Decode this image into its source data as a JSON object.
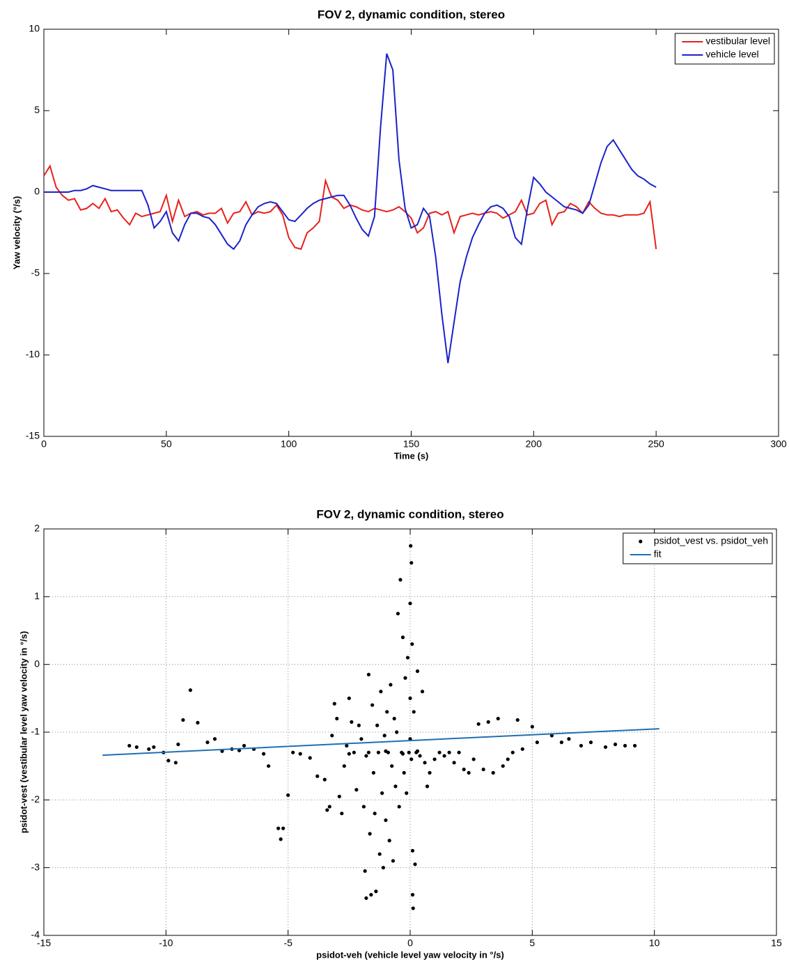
{
  "chart_data": [
    {
      "type": "line",
      "title": "FOV 2, dynamic condition, stereo",
      "xlabel": "Time (s)",
      "ylabel": "Yaw velocity (°/s)",
      "xlim": [
        0,
        300
      ],
      "xticks": [
        0,
        50,
        100,
        150,
        200,
        250,
        300
      ],
      "ylim": [
        -15,
        10
      ],
      "yticks": [
        -15,
        -10,
        -5,
        0,
        5,
        10
      ],
      "grid": false,
      "legend": "upper right",
      "x": [
        0,
        2.5,
        5,
        7.5,
        10,
        12.5,
        15,
        17.5,
        20,
        22.5,
        25,
        27.5,
        30,
        32.5,
        35,
        37.5,
        40,
        42.5,
        45,
        47.5,
        50,
        52.5,
        55,
        57.5,
        60,
        62.5,
        65,
        67.5,
        70,
        72.5,
        75,
        77.5,
        80,
        82.5,
        85,
        87.5,
        90,
        92.5,
        95,
        97.5,
        100,
        102.5,
        105,
        107.5,
        110,
        112.5,
        115,
        117.5,
        120,
        122.5,
        125,
        127.5,
        130,
        132.5,
        135,
        137.5,
        140,
        142.5,
        145,
        147.5,
        150,
        152.5,
        155,
        157.5,
        160,
        162.5,
        165,
        167.5,
        170,
        172.5,
        175,
        177.5,
        180,
        182.5,
        185,
        187.5,
        190,
        192.5,
        195,
        197.5,
        200,
        202.5,
        205,
        207.5,
        210,
        212.5,
        215,
        217.5,
        220,
        222.5,
        225,
        227.5,
        230,
        232.5,
        235,
        237.5,
        240,
        242.5,
        245,
        247.5,
        250
      ],
      "series": [
        {
          "name": "vestibular level",
          "color": "#e8201a",
          "values": [
            1.0,
            1.6,
            0.3,
            -0.2,
            -0.5,
            -0.4,
            -1.1,
            -1.0,
            -0.7,
            -1.0,
            -0.4,
            -1.2,
            -1.1,
            -1.6,
            -2.0,
            -1.3,
            -1.5,
            -1.4,
            -1.3,
            -1.2,
            -0.2,
            -1.8,
            -0.5,
            -1.5,
            -1.3,
            -1.2,
            -1.4,
            -1.3,
            -1.3,
            -1.0,
            -1.9,
            -1.3,
            -1.2,
            -0.6,
            -1.4,
            -1.2,
            -1.3,
            -1.2,
            -0.8,
            -1.4,
            -2.8,
            -3.4,
            -3.5,
            -2.5,
            -2.2,
            -1.8,
            0.7,
            -0.3,
            -0.5,
            -1.0,
            -0.8,
            -0.9,
            -1.1,
            -1.2,
            -1.0,
            -1.1,
            -1.2,
            -1.1,
            -0.9,
            -1.2,
            -1.6,
            -2.5,
            -2.2,
            -1.3,
            -1.2,
            -1.4,
            -1.2,
            -2.5,
            -1.5,
            -1.4,
            -1.3,
            -1.4,
            -1.3,
            -1.2,
            -1.3,
            -1.6,
            -1.4,
            -1.2,
            -0.5,
            -1.4,
            -1.3,
            -0.7,
            -0.5,
            -2.0,
            -1.3,
            -1.2,
            -0.7,
            -0.9,
            -1.3,
            -0.6,
            -1.0,
            -1.3,
            -1.4,
            -1.4,
            -1.5,
            -1.4,
            -1.4,
            -1.4,
            -1.3,
            -0.6,
            -3.5
          ]
        },
        {
          "name": "vehicle level",
          "color": "#1a22c8",
          "values": [
            0,
            0,
            0,
            0,
            0,
            0.1,
            0.1,
            0.2,
            0.4,
            0.3,
            0.2,
            0.1,
            0.1,
            0.1,
            0.1,
            0.1,
            0.1,
            -0.8,
            -2.2,
            -1.8,
            -1.2,
            -2.5,
            -3.0,
            -2.0,
            -1.3,
            -1.3,
            -1.5,
            -1.6,
            -2.0,
            -2.6,
            -3.2,
            -3.5,
            -3.0,
            -2.0,
            -1.4,
            -0.9,
            -0.7,
            -0.6,
            -0.7,
            -1.2,
            -1.7,
            -1.8,
            -1.4,
            -1.0,
            -0.7,
            -0.5,
            -0.4,
            -0.3,
            -0.2,
            -0.2,
            -0.8,
            -1.6,
            -2.3,
            -2.7,
            -1.5,
            4.0,
            8.5,
            7.5,
            2.0,
            -1.0,
            -2.2,
            -2.0,
            -1.0,
            -1.5,
            -4.0,
            -7.5,
            -10.5,
            -8.0,
            -5.5,
            -4.0,
            -2.8,
            -2.0,
            -1.3,
            -0.9,
            -0.8,
            -1.0,
            -1.5,
            -2.8,
            -3.2,
            -1.0,
            0.9,
            0.5,
            0.0,
            -0.3,
            -0.6,
            -0.9,
            -1.0,
            -1.1,
            -1.3,
            -0.8,
            0.5,
            1.8,
            2.8,
            3.2,
            2.6,
            2.0,
            1.4,
            1.0,
            0.8,
            0.5,
            0.3
          ]
        }
      ]
    },
    {
      "type": "scatter",
      "title": "FOV 2, dynamic condition, stereo",
      "xlabel": "psidot-veh (vehicle level yaw velocity in °/s)",
      "ylabel": "psidot-vest (vestibular level yaw velocity in °/s)",
      "xlim": [
        -15,
        15
      ],
      "xticks": [
        -15,
        -10,
        -5,
        0,
        5,
        10,
        15
      ],
      "ylim": [
        -4,
        2
      ],
      "yticks": [
        -4,
        -3,
        -2,
        -1,
        0,
        1,
        2
      ],
      "grid": true,
      "legend": "upper right",
      "series": [
        {
          "name": "psidot_vest vs. psidot_veh",
          "type": "points",
          "color": "#000000",
          "x": [
            -11.5,
            -11.2,
            -10.7,
            -10.5,
            -10.1,
            -9.9,
            -9.6,
            -9.5,
            -9.3,
            -9.0,
            -8.7,
            -8.3,
            -8.0,
            -7.7,
            -7.3,
            -7.0,
            -6.8,
            -6.4,
            -6.0,
            -5.8,
            -5.4,
            -5.3,
            -5.2,
            -5.0,
            -4.8,
            -4.5,
            -4.1,
            -3.8,
            -3.5,
            -3.4,
            -3.3,
            -3.2,
            -3.1,
            -3.0,
            -2.9,
            -2.8,
            -2.7,
            -2.6,
            -2.5,
            -2.4,
            -2.3,
            -2.2,
            -2.1,
            -2.0,
            -1.9,
            -1.85,
            -1.8,
            -1.7,
            -1.7,
            -1.65,
            -1.6,
            -1.55,
            -1.5,
            -1.45,
            -1.4,
            -1.35,
            -1.3,
            -1.25,
            -1.2,
            -1.15,
            -1.1,
            -1.05,
            -1.0,
            -0.95,
            -0.9,
            -0.85,
            -0.8,
            -0.75,
            -0.7,
            -0.65,
            -0.6,
            -0.55,
            -0.5,
            -0.45,
            -0.4,
            -0.35,
            -0.3,
            -0.25,
            -0.2,
            -0.15,
            -0.1,
            -0.05,
            0,
            0,
            0,
            0.02,
            0.05,
            0.05,
            0.08,
            0.1,
            0.1,
            0.12,
            0.15,
            0.2,
            0.25,
            0.3,
            0.4,
            0.5,
            0.6,
            0.7,
            0.8,
            1.0,
            1.2,
            1.4,
            1.6,
            1.8,
            2.0,
            2.2,
            2.4,
            2.6,
            2.8,
            3.0,
            3.2,
            3.4,
            3.6,
            3.8,
            4.0,
            4.2,
            4.4,
            4.6,
            5.0,
            5.2,
            5.8,
            6.2,
            6.5,
            7.0,
            7.4,
            8.0,
            8.4,
            8.8,
            9.2,
            -2.5,
            -1.8,
            -1.0,
            -0.3,
            0.3
          ],
          "values": [
            -1.2,
            -1.22,
            -1.25,
            -1.22,
            -1.3,
            -1.42,
            -1.45,
            -1.18,
            -0.82,
            -0.38,
            -0.86,
            -1.15,
            -1.1,
            -1.28,
            -1.25,
            -1.27,
            -1.2,
            -1.25,
            -1.32,
            -1.5,
            -2.42,
            -2.58,
            -2.42,
            -1.93,
            -1.3,
            -1.32,
            -1.38,
            -1.65,
            -1.7,
            -2.15,
            -2.1,
            -1.05,
            -0.58,
            -0.8,
            -1.95,
            -2.2,
            -1.5,
            -1.2,
            -0.5,
            -0.85,
            -1.3,
            -1.85,
            -0.9,
            -1.1,
            -2.1,
            -3.05,
            -3.45,
            -0.15,
            -1.3,
            -2.5,
            -3.4,
            -0.6,
            -1.6,
            -2.2,
            -3.35,
            -0.9,
            -1.3,
            -2.8,
            -0.4,
            -1.9,
            -3.0,
            -1.05,
            -2.3,
            -0.7,
            -1.3,
            -2.6,
            -0.3,
            -1.5,
            -2.9,
            -0.8,
            -1.8,
            -1.0,
            0.75,
            -2.1,
            1.25,
            -1.3,
            0.4,
            -1.6,
            -0.2,
            -1.9,
            0.1,
            -1.3,
            0.9,
            -0.5,
            -1.1,
            1.75,
            1.5,
            -1.4,
            0.3,
            -2.75,
            -3.4,
            -3.6,
            -0.7,
            -2.95,
            -1.3,
            -0.1,
            -1.35,
            -0.4,
            -1.45,
            -1.8,
            -1.6,
            -1.4,
            -1.3,
            -1.35,
            -1.3,
            -1.45,
            -1.3,
            -1.55,
            -1.6,
            -1.4,
            -0.88,
            -1.55,
            -0.85,
            -1.6,
            -0.8,
            -1.5,
            -1.4,
            -1.3,
            -0.82,
            -1.25,
            -0.92,
            -1.15,
            -1.05,
            -1.15,
            -1.1,
            -1.2,
            -1.15,
            -1.22,
            -1.18,
            -1.2,
            -1.2,
            -1.32,
            -1.35,
            -1.28,
            -1.32,
            -1.28
          ]
        },
        {
          "name": "fit",
          "type": "line",
          "color": "#1f6fb2",
          "x": [
            -12.6,
            10.2
          ],
          "values": [
            -1.34,
            -0.95
          ]
        }
      ]
    }
  ]
}
